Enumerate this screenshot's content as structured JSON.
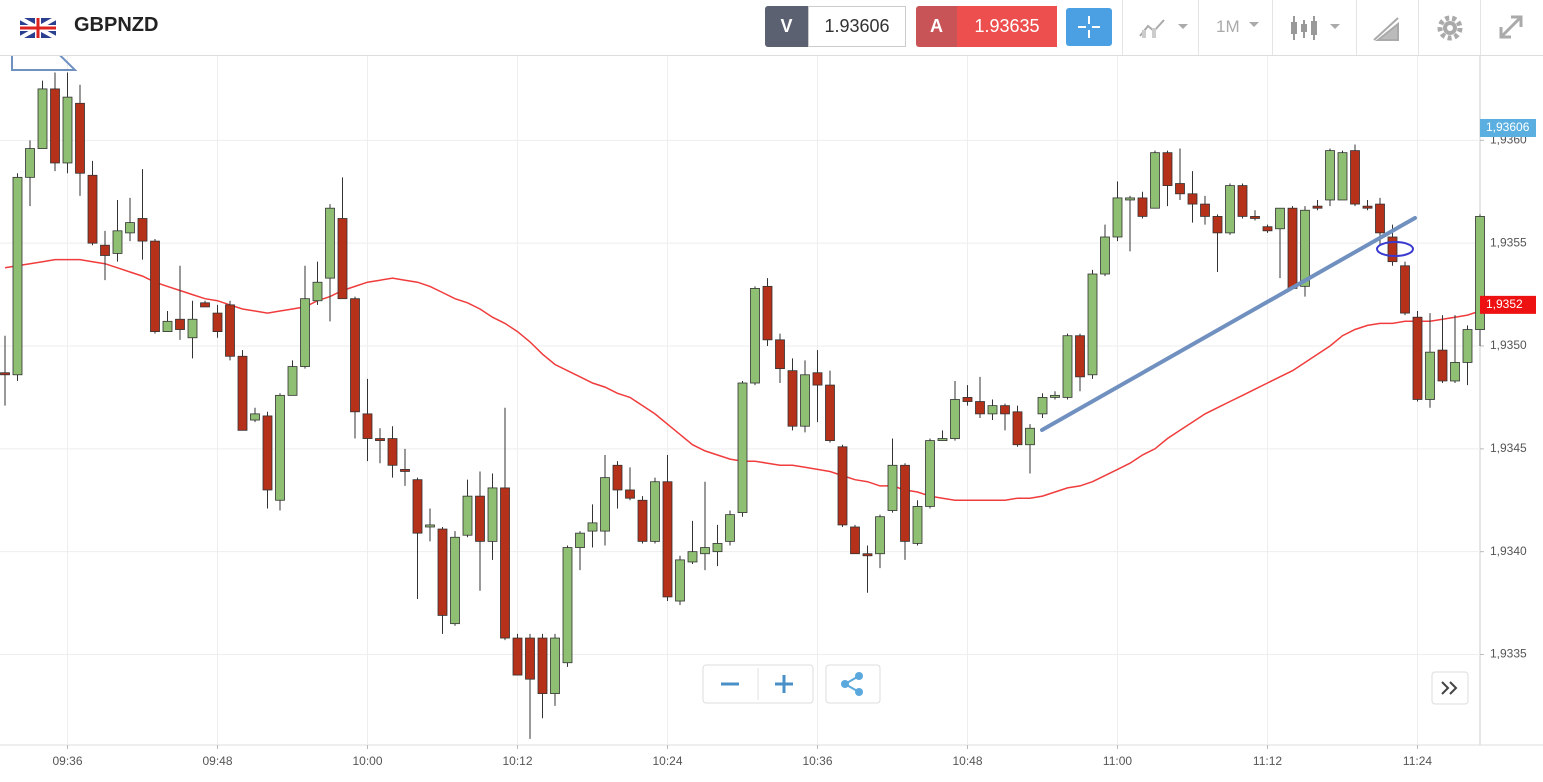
{
  "toolbar": {
    "symbol": "GBPNZD",
    "sell_label": "V",
    "sell_price": "1.93606",
    "buy_label": "A",
    "buy_price": "1.93635",
    "timeframe": "1M"
  },
  "chart_data": {
    "type": "candlestick",
    "categories": [
      null,
      null,
      null,
      null,
      null,
      "09:36",
      null,
      null,
      null,
      null,
      null,
      null,
      null,
      null,
      null,
      null,
      null,
      "09:48",
      null,
      null,
      null,
      null,
      null,
      null,
      null,
      null,
      null,
      null,
      null,
      "10:00",
      null,
      null,
      null,
      null,
      null,
      null,
      null,
      null,
      null,
      null,
      null,
      "10:12",
      null,
      null,
      null,
      null,
      null,
      null,
      null,
      null,
      null,
      null,
      null,
      "10:24",
      null,
      null,
      null,
      null,
      null,
      null,
      null,
      null,
      null,
      null,
      null,
      "10:36",
      null,
      null,
      null,
      null,
      null,
      null,
      null,
      null,
      null,
      null,
      null,
      "10:48",
      null,
      null,
      null,
      null,
      null,
      null,
      null,
      null,
      null,
      null,
      null,
      "11:00",
      null,
      null,
      null,
      null,
      null,
      null,
      null,
      null,
      null,
      null,
      null,
      "11:12",
      null,
      null,
      null,
      null,
      null,
      null,
      null,
      null,
      null,
      null,
      null,
      "11:24",
      null,
      null,
      null,
      null,
      null
    ],
    "open": [
      1.93487,
      1.93486,
      1.93582,
      1.93596,
      1.93625,
      1.93589,
      1.93618,
      1.93583,
      1.93549,
      1.93545,
      1.93555,
      1.93562,
      1.93551,
      1.93507,
      1.93513,
      1.93504,
      1.93521,
      1.93516,
      1.9352,
      1.93495,
      1.93464,
      1.93466,
      1.93425,
      1.93476,
      1.9349,
      1.93522,
      1.93533,
      1.93562,
      1.93523,
      1.93467,
      1.93455,
      1.93455,
      1.9344,
      1.93435,
      1.93412,
      1.93411,
      1.93365,
      1.93408,
      1.93427,
      1.93405,
      1.93431,
      1.93358,
      1.93358,
      1.93358,
      1.93331,
      1.93346,
      1.93402,
      1.9341,
      1.9341,
      1.93442,
      1.9343,
      1.93425,
      1.93405,
      1.93434,
      1.93376,
      1.93395,
      1.93399,
      1.934,
      1.93405,
      1.93419,
      1.93482,
      1.93529,
      1.93503,
      1.93488,
      1.93461,
      1.93487,
      1.93481,
      1.93451,
      1.93412,
      1.93399,
      1.93399,
      1.9342,
      1.93442,
      1.93404,
      1.93422,
      1.93454,
      1.93455,
      1.93475,
      1.93473,
      1.93467,
      1.93471,
      1.93468,
      1.93452,
      1.93467,
      1.93475,
      1.93475,
      1.93505,
      1.93486,
      1.93535,
      1.93553,
      1.93571,
      1.93572,
      1.93567,
      1.93594,
      1.93579,
      1.93574,
      1.93569,
      1.93563,
      1.93555,
      1.93578,
      1.93563,
      1.93558,
      1.93557,
      1.93567,
      1.93529,
      1.93568,
      1.93571,
      1.93571,
      1.93595,
      1.93568,
      1.93569,
      1.93553,
      1.93539,
      1.93514,
      1.93474,
      1.93498,
      1.93483,
      1.93492,
      1.93508
    ],
    "high": [
      1.93505,
      1.93584,
      1.936,
      1.93629,
      1.93633,
      1.93633,
      1.93627,
      1.9359,
      1.93556,
      1.93571,
      1.93572,
      1.93586,
      1.93552,
      1.93517,
      1.93539,
      1.93522,
      1.93522,
      1.9352,
      1.93522,
      1.93498,
      1.9347,
      1.93468,
      1.93477,
      1.93493,
      1.93539,
      1.93541,
      1.93569,
      1.93582,
      1.93524,
      1.93484,
      1.9346,
      1.93461,
      1.9345,
      1.93436,
      1.93421,
      1.93412,
      1.9341,
      1.93435,
      1.93439,
      1.93438,
      1.9347,
      1.9336,
      1.9336,
      1.9336,
      1.9336,
      1.93403,
      1.9341,
      1.93423,
      1.93447,
      1.93444,
      1.93441,
      1.93427,
      1.93436,
      1.93447,
      1.93398,
      1.93415,
      1.93434,
      1.93413,
      1.9342,
      1.93483,
      1.93529,
      1.93533,
      1.93506,
      1.93494,
      1.93493,
      1.93498,
      1.93488,
      1.93452,
      1.93413,
      1.93403,
      1.93418,
      1.93455,
      1.93443,
      1.93425,
      1.93455,
      1.93459,
      1.93483,
      1.93481,
      1.93485,
      1.93474,
      1.93472,
      1.93471,
      1.93462,
      1.93477,
      1.93478,
      1.93506,
      1.93506,
      1.93537,
      1.93559,
      1.9358,
      1.93573,
      1.93575,
      1.93595,
      1.93595,
      1.93596,
      1.93585,
      1.93573,
      1.93564,
      1.93579,
      1.93579,
      1.93566,
      1.93559,
      1.93567,
      1.93568,
      1.93568,
      1.93571,
      1.93596,
      1.93595,
      1.93598,
      1.93571,
      1.93572,
      1.93559,
      1.93541,
      1.93517,
      1.93516,
      1.93515,
      1.93515,
      1.9351,
      1.93564
    ],
    "low": [
      1.93471,
      1.93483,
      1.93568,
      1.93596,
      1.93585,
      1.93584,
      1.93573,
      1.93549,
      1.93532,
      1.93541,
      1.93551,
      1.93542,
      1.93506,
      1.93507,
      1.93503,
      1.93494,
      1.93519,
      1.93504,
      1.93493,
      1.93459,
      1.93463,
      1.93421,
      1.9342,
      1.93476,
      1.93489,
      1.9352,
      1.93512,
      1.93523,
      1.93455,
      1.93444,
      1.93443,
      1.93436,
      1.93432,
      1.93377,
      1.93405,
      1.9336,
      1.93364,
      1.93407,
      1.93381,
      1.93396,
      1.93357,
      1.9334,
      1.93309,
      1.93319,
      1.93325,
      1.93344,
      1.93391,
      1.93402,
      1.93403,
      1.93421,
      1.93425,
      1.93404,
      1.93404,
      1.93376,
      1.93374,
      1.93394,
      1.93391,
      1.93393,
      1.93403,
      1.93417,
      1.93481,
      1.935,
      1.93482,
      1.93459,
      1.93458,
      1.93463,
      1.93453,
      1.93412,
      1.93399,
      1.9338,
      1.93392,
      1.93419,
      1.93396,
      1.93403,
      1.93421,
      1.93454,
      1.93454,
      1.93471,
      1.93465,
      1.93464,
      1.93459,
      1.93451,
      1.93438,
      1.93465,
      1.93474,
      1.93474,
      1.93478,
      1.93484,
      1.93534,
      1.93551,
      1.93546,
      1.93562,
      1.93567,
      1.93568,
      1.93571,
      1.9356,
      1.93559,
      1.93536,
      1.93554,
      1.93562,
      1.93561,
      1.93555,
      1.93533,
      1.93528,
      1.93524,
      1.93566,
      1.93568,
      1.93571,
      1.93568,
      1.93566,
      1.93549,
      1.93539,
      1.93515,
      1.93473,
      1.9347,
      1.93482,
      1.93482,
      1.93481,
      1.935
    ],
    "close": [
      1.93486,
      1.93582,
      1.93596,
      1.93625,
      1.93589,
      1.93621,
      1.93584,
      1.9355,
      1.93544,
      1.93556,
      1.9356,
      1.93551,
      1.93507,
      1.93512,
      1.93508,
      1.93513,
      1.93519,
      1.93507,
      1.93495,
      1.93459,
      1.93467,
      1.9343,
      1.93476,
      1.9349,
      1.93523,
      1.93531,
      1.93567,
      1.93523,
      1.93468,
      1.93455,
      1.93454,
      1.93442,
      1.93439,
      1.93409,
      1.93413,
      1.93369,
      1.93407,
      1.93427,
      1.93405,
      1.93431,
      1.93358,
      1.9334,
      1.93338,
      1.93331,
      1.93358,
      1.93402,
      1.93409,
      1.93414,
      1.93436,
      1.9343,
      1.93426,
      1.93405,
      1.93434,
      1.93378,
      1.93396,
      1.934,
      1.93402,
      1.93404,
      1.93418,
      1.93482,
      1.93528,
      1.93503,
      1.93489,
      1.93461,
      1.93486,
      1.93481,
      1.93454,
      1.93413,
      1.93399,
      1.93398,
      1.93417,
      1.93442,
      1.93405,
      1.93422,
      1.93454,
      1.93455,
      1.93474,
      1.93473,
      1.93467,
      1.93471,
      1.93467,
      1.93452,
      1.9346,
      1.93475,
      1.93476,
      1.93505,
      1.93485,
      1.93535,
      1.93553,
      1.93572,
      1.93572,
      1.93563,
      1.93594,
      1.93578,
      1.93574,
      1.93569,
      1.93563,
      1.93555,
      1.93578,
      1.93563,
      1.93562,
      1.93556,
      1.93567,
      1.93528,
      1.93566,
      1.93567,
      1.93595,
      1.93594,
      1.93569,
      1.93567,
      1.93555,
      1.93541,
      1.93516,
      1.93474,
      1.93497,
      1.93483,
      1.93492,
      1.93508,
      1.93563
    ],
    "up_color": "#8fbf73",
    "down_color": "#b5311a",
    "overlays": [
      {
        "color": "#f03c3c",
        "values": [
          1.93538,
          1.93539,
          1.9354,
          1.93541,
          1.93542,
          1.93542,
          1.93542,
          1.93541,
          1.9354,
          1.93538,
          1.93536,
          1.93534,
          1.93531,
          1.93529,
          1.93527,
          1.93525,
          1.93523,
          1.93522,
          1.9352,
          1.93518,
          1.93517,
          1.93516,
          1.93517,
          1.93518,
          1.93519,
          1.93522,
          1.93524,
          1.93527,
          1.93529,
          1.93531,
          1.93532,
          1.93533,
          1.93532,
          1.93531,
          1.93529,
          1.93526,
          1.93523,
          1.93521,
          1.93518,
          1.93514,
          1.93511,
          1.93507,
          1.93502,
          1.93496,
          1.93491,
          1.93488,
          1.93485,
          1.93482,
          1.9348,
          1.93477,
          1.93475,
          1.93471,
          1.93467,
          1.93462,
          1.93457,
          1.93452,
          1.93449,
          1.93447,
          1.93445,
          1.93444,
          1.93444,
          1.93443,
          1.93442,
          1.93442,
          1.93441,
          1.9344,
          1.93439,
          1.93437,
          1.93435,
          1.93434,
          1.93432,
          1.93432,
          1.9343,
          1.93429,
          1.93427,
          1.93426,
          1.93425,
          1.93425,
          1.93425,
          1.93425,
          1.93425,
          1.93426,
          1.93426,
          1.93427,
          1.93429,
          1.93431,
          1.93432,
          1.93434,
          1.93437,
          1.9344,
          1.93443,
          1.93447,
          1.9345,
          1.93455,
          1.93459,
          1.93463,
          1.93467,
          1.9347,
          1.93473,
          1.93476,
          1.93479,
          1.93482,
          1.93485,
          1.93488,
          1.93492,
          1.93496,
          1.935,
          1.93505,
          1.93508,
          1.9351,
          1.93511,
          1.93511,
          1.93512,
          1.93512,
          1.93512,
          1.93513,
          1.93514,
          1.93515,
          1.93517
        ]
      }
    ],
    "ylim": [
      1.93306,
      1.93641
    ],
    "yticks": [
      {
        "value": 1.936,
        "label": "1,9360"
      },
      {
        "value": 1.9355,
        "label": "1,9355"
      },
      {
        "value": 1.935,
        "label": "1,9350"
      },
      {
        "value": 1.9345,
        "label": "1,9345"
      },
      {
        "value": 1.934,
        "label": "1,9340"
      },
      {
        "value": 1.9335,
        "label": "1,9335"
      }
    ],
    "price_labels": [
      {
        "value": 1.93606,
        "label": "1,93606",
        "color": "#5aafe0"
      },
      {
        "value": 1.9352,
        "label": "1,9352",
        "color": "#ee1111"
      }
    ],
    "grid": true
  }
}
